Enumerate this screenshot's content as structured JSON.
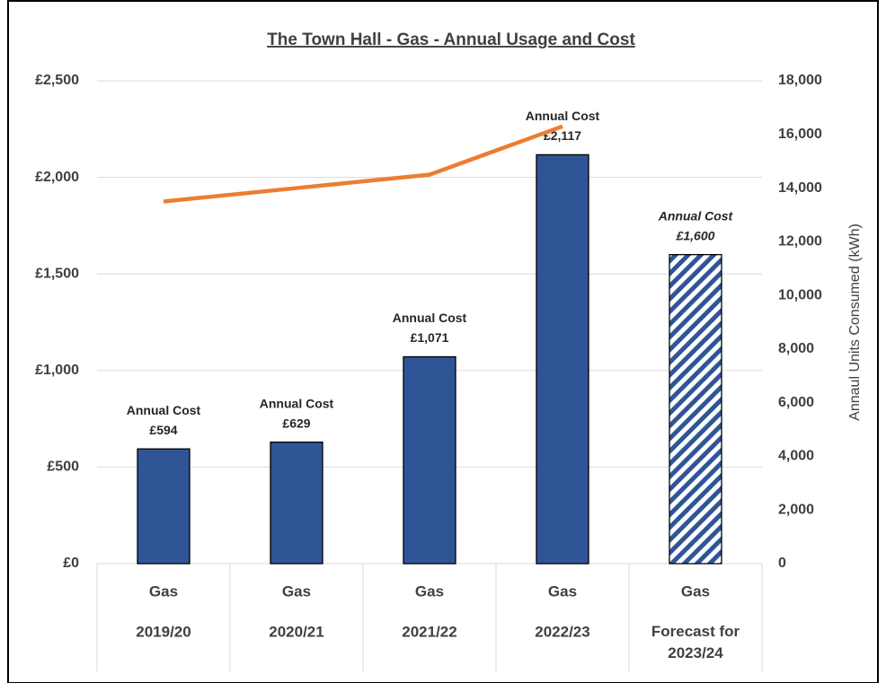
{
  "chart_data": {
    "type": "bar_line",
    "title": "The Town Hall - Gas - Annual Usage and Cost",
    "categories": [
      [
        "Gas",
        "2019/20"
      ],
      [
        "Gas",
        "2020/21"
      ],
      [
        "Gas",
        "2021/22"
      ],
      [
        "Gas",
        "2022/23"
      ],
      [
        "Gas",
        "Forecast for 2023/24"
      ]
    ],
    "series": [
      {
        "name": "Annual Cost",
        "type": "bar",
        "color": "#2f5597",
        "values": [
          594,
          629,
          1071,
          2117,
          1600
        ],
        "value_labels": [
          "£594",
          "£629",
          "£1,071",
          "£2,117",
          "£1,600"
        ],
        "styles": [
          "solid",
          "solid",
          "solid",
          "solid",
          "hatched"
        ]
      },
      {
        "type": "line",
        "axis": "y2",
        "color": "#ed7d31",
        "values": [
          13500,
          14000,
          14500,
          16300,
          null
        ]
      }
    ],
    "ylim": [
      0,
      2500
    ],
    "yticks": [
      {
        "value": 0,
        "label": "£0"
      },
      {
        "value": 500,
        "label": "£500"
      },
      {
        "value": 1000,
        "label": "£1,000"
      },
      {
        "value": 1500,
        "label": "£1,500"
      },
      {
        "value": 2000,
        "label": "£2,000"
      },
      {
        "value": 2500,
        "label": "£2,500"
      }
    ],
    "y2label": "Annaul Units Consumed (kWh)",
    "y2lim": [
      0,
      18000
    ],
    "y2ticks": [
      0,
      {
        "value": 2000,
        "label": "2,000"
      },
      {
        "value": 4000,
        "label": "4,000"
      },
      {
        "value": 6000,
        "label": "6,000"
      },
      {
        "value": 8000,
        "label": "8,000"
      },
      {
        "value": 10000,
        "label": "10,000"
      },
      {
        "value": 12000,
        "label": "12,000"
      },
      {
        "value": 14000,
        "label": "14,000"
      },
      {
        "value": 16000,
        "label": "16,000"
      },
      {
        "value": 18000,
        "label": "18,000"
      }
    ],
    "grid": true
  }
}
